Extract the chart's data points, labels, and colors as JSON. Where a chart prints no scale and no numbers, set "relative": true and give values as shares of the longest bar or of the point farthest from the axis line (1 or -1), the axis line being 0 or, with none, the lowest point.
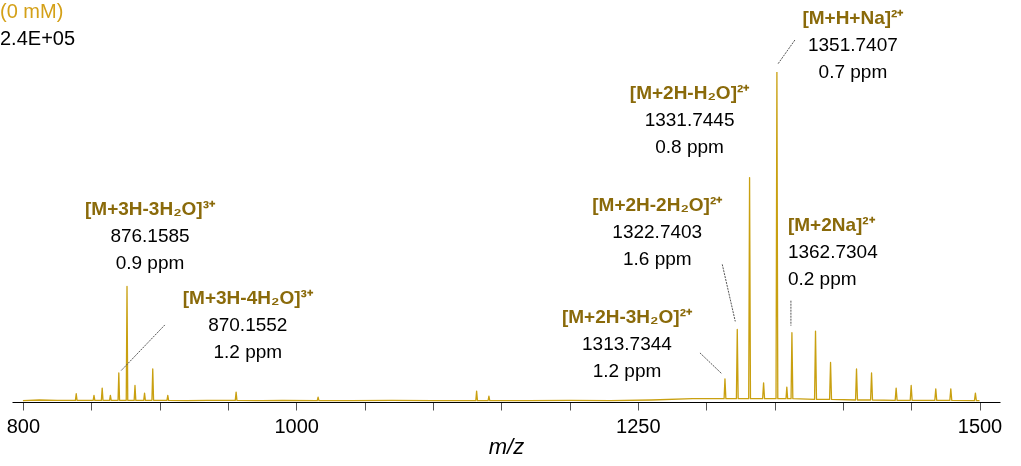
{
  "chart_data": {
    "type": "line",
    "title": "(0 mM)",
    "xlabel": "m/z",
    "relative": true,
    "xlim": [
      792,
      1515
    ],
    "xticks": [
      800,
      {
        "value": 850,
        "label": null
      },
      {
        "value": 900,
        "label": null
      },
      {
        "value": 950,
        "label": null
      },
      1000,
      {
        "value": 1050,
        "label": null
      },
      {
        "value": 1100,
        "label": null
      },
      {
        "value": 1150,
        "label": null
      },
      {
        "value": 1200,
        "label": null
      },
      1250,
      {
        "value": 1300,
        "label": null
      },
      {
        "value": 1350,
        "label": null
      },
      {
        "value": 1400,
        "label": null
      },
      {
        "value": 1450,
        "label": null
      },
      1500
    ],
    "grid": false,
    "marker": "none",
    "line_style": "solid",
    "series": [
      {
        "color": "#c9a010",
        "x": [
          800,
          812,
          825,
          838.4,
          839,
          839.6,
          851.4,
          852,
          852.6,
          857.4,
          858,
          858.6,
          863.4,
          864,
          864.6,
          869.6,
          870.16,
          870.7,
          875.6,
          876.16,
          876.7,
          881.4,
          882,
          882.6,
          888.4,
          889,
          889.6,
          894.4,
          895,
          895.6,
          905.4,
          906,
          906.6,
          920,
          935,
          955.4,
          956,
          956.6,
          975,
          990,
          1015.4,
          1016,
          1016.6,
          1040,
          1070,
          1100,
          1131.4,
          1132,
          1132.6,
          1140.4,
          1141,
          1141.6,
          1170,
          1200,
          1230,
          1260,
          1290,
          1313.1,
          1313.73,
          1314.4,
          1322.1,
          1322.74,
          1323.4,
          1331.1,
          1331.74,
          1332.4,
          1341.3,
          1342,
          1342.7,
          1351.1,
          1351.74,
          1352.4,
          1358.4,
          1359,
          1359.6,
          1362.1,
          1362.73,
          1363.4,
          1379.3,
          1380,
          1380.7,
          1390.3,
          1391,
          1391.7,
          1409.3,
          1410,
          1410.7,
          1420.3,
          1421,
          1421.7,
          1438.3,
          1439,
          1439.7,
          1449.3,
          1450,
          1450.7,
          1467.3,
          1468,
          1468.7,
          1478.3,
          1479,
          1479.7,
          1496.3,
          1497,
          1497.7,
          1500
        ],
        "values": [
          0.004,
          0.006,
          0.005,
          0.005,
          0.025,
          0.005,
          0.005,
          0.02,
          0.005,
          0.005,
          0.042,
          0.005,
          0.005,
          0.02,
          0.005,
          0.005,
          0.088,
          0.005,
          0.005,
          0.35,
          0.005,
          0.005,
          0.05,
          0.005,
          0.005,
          0.027,
          0.005,
          0.005,
          0.1,
          0.005,
          0.005,
          0.02,
          0.005,
          0.004,
          0.005,
          0.005,
          0.03,
          0.005,
          0.004,
          0.005,
          0.004,
          0.015,
          0.004,
          0.004,
          0.005,
          0.004,
          0.004,
          0.033,
          0.004,
          0.004,
          0.018,
          0.004,
          0.004,
          0.005,
          0.004,
          0.006,
          0.01,
          0.01,
          0.07,
          0.01,
          0.01,
          0.22,
          0.01,
          0.01,
          0.68,
          0.01,
          0.01,
          0.058,
          0.01,
          0.01,
          1,
          0.01,
          0.01,
          0.045,
          0.01,
          0.01,
          0.21,
          0.01,
          0.008,
          0.215,
          0.008,
          0.008,
          0.12,
          0.008,
          0.006,
          0.1,
          0.006,
          0.006,
          0.088,
          0.006,
          0.005,
          0.042,
          0.005,
          0.005,
          0.05,
          0.005,
          0.005,
          0.04,
          0.005,
          0.005,
          0.04,
          0.005,
          0.004,
          0.027,
          0.004,
          0.004
        ]
      }
    ],
    "annotations": [
      {
        "text": "[M+3H-3H₂O]³⁺\n876.1585\n0.9 ppm",
        "x": 876.16,
        "y": 0.35
      },
      {
        "text": "[M+3H-4H₂O]³⁺\n870.1552\n1.2 ppm",
        "x": 870.16,
        "y": 0.088
      },
      {
        "text": "[M+2H-3H₂O]²⁺\n1313.7344\n1.2 ppm",
        "x": 1313.73,
        "y": 0.07
      },
      {
        "text": "[M+2H-2H₂O]²⁺\n1322.7403\n1.6 ppm",
        "x": 1322.74,
        "y": 0.22
      },
      {
        "text": "[M+2H-H₂O]²⁺\n1331.7445\n0.8 ppm",
        "x": 1331.74,
        "y": 0.68
      },
      {
        "text": "[M+H+Na]²⁺\n1351.7407\n0.7 ppm",
        "x": 1351.74,
        "y": 1
      },
      {
        "text": "[M+2Na]²⁺\n1362.7304\n0.2 ppm",
        "x": 1362.73,
        "y": 0.21
      },
      "2.4E+05"
    ]
  }
}
